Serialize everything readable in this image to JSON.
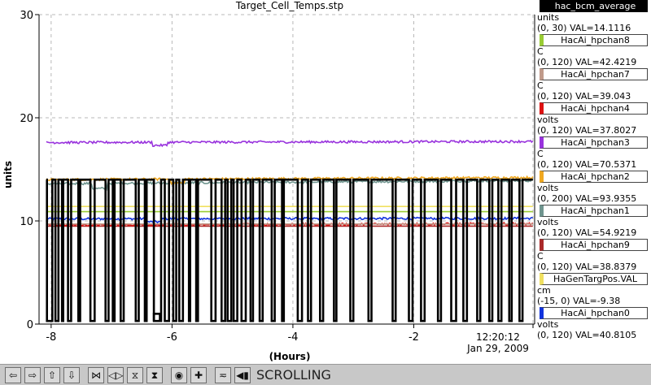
{
  "chart_data": {
    "type": "line",
    "title": "Target_Cell_Temps.stp",
    "xlabel": "(Hours)",
    "ylabel": "units",
    "xlim": [
      -8.2,
      0
    ],
    "ylim": [
      0,
      30
    ],
    "yticks": [
      "0",
      "10",
      "20",
      "30"
    ],
    "xticks": [
      "-8",
      "-6",
      "-4",
      "-2"
    ],
    "time_label": "12:20:12",
    "date_label": "Jan 29, 2009",
    "grid": true,
    "series": [
      {
        "name": "hac_bcm_average",
        "color": "#000000",
        "kind": "pulse",
        "high": 14.0,
        "low": 0.3,
        "drops": [
          [
            -8.07,
            -7.98
          ],
          [
            -7.93,
            -7.88
          ],
          [
            -7.82,
            -7.8
          ],
          [
            -7.72,
            -7.67
          ],
          [
            -7.55,
            -7.52
          ],
          [
            -7.35,
            -7.28
          ],
          [
            -7.1,
            -7.05
          ],
          [
            -6.98,
            -6.95
          ],
          [
            -6.85,
            -6.8
          ],
          [
            -6.6,
            -6.55
          ],
          [
            -6.45,
            -6.42
          ],
          [
            -6.3,
            -6.18
          ],
          [
            -6.12,
            -6.05
          ],
          [
            -5.98,
            -5.93
          ],
          [
            -5.88,
            -5.82
          ],
          [
            -5.72,
            -5.7
          ],
          [
            -5.6,
            -5.57
          ],
          [
            -5.35,
            -5.28
          ],
          [
            -5.18,
            -5.12
          ],
          [
            -5.08,
            -5.02
          ],
          [
            -4.98,
            -4.92
          ],
          [
            -4.85,
            -4.78
          ],
          [
            -4.7,
            -4.66
          ],
          [
            -4.55,
            -4.5
          ],
          [
            -4.35,
            -4.3
          ],
          [
            -4.18,
            -4.15
          ],
          [
            -3.92,
            -3.85
          ],
          [
            -3.75,
            -3.7
          ],
          [
            -3.55,
            -3.5
          ],
          [
            -3.32,
            -3.28
          ],
          [
            -3.05,
            -3.0
          ],
          [
            -2.75,
            -2.7
          ],
          [
            -2.35,
            -2.3
          ],
          [
            -2.08,
            -2.02
          ],
          [
            -1.88,
            -1.82
          ],
          [
            -1.6,
            -1.55
          ],
          [
            -1.38,
            -1.3
          ],
          [
            -1.18,
            -1.12
          ],
          [
            -0.95,
            -0.9
          ],
          [
            -0.75,
            -0.7
          ],
          [
            -0.6,
            -0.55
          ],
          [
            -0.42,
            -0.38
          ],
          [
            -0.25,
            -0.2
          ]
        ],
        "blip": [
          -6.3,
          -6.2,
          1.0
        ]
      },
      {
        "name": "HacAi_hpchan8",
        "color": "#99cc33",
        "kind": "flat",
        "value": 10.9
      },
      {
        "name": "HacAi_hpchan7",
        "color": "#c09a8a",
        "kind": "flat",
        "value": 9.7
      },
      {
        "name": "HacAi_hpchan4",
        "color": "#dd1111",
        "kind": "noisy",
        "value": 9.6,
        "slope": 0.12
      },
      {
        "name": "HacAi_hpchan3",
        "color": "#9933dd",
        "kind": "noisy",
        "value": 17.6,
        "slope": 0.1,
        "dip": [
          -6.2,
          -0.3
        ]
      },
      {
        "name": "HacAi_hpchan2",
        "color": "#f0a820",
        "kind": "noisy",
        "value": 14.0,
        "slope": 0.2,
        "dip": [
          -5.9,
          -0.4
        ]
      },
      {
        "name": "HacAi_hpchan1",
        "color": "#6f958f",
        "kind": "noisy",
        "value": 13.6,
        "slope": 0.3,
        "dip": [
          -7.2,
          -0.5
        ]
      },
      {
        "name": "HacAi_hpchan9",
        "color": "#aa2a2a",
        "kind": "flat",
        "value": 9.5
      },
      {
        "name": "HaGenTargPos.VAL",
        "color": "#f0e060",
        "kind": "flat",
        "value": 11.4
      },
      {
        "name": "HacAi_hpchan0",
        "color": "#1133dd",
        "kind": "noisy",
        "value": 10.2,
        "slope": 0.05,
        "dip": [
          -6.3,
          -0.3
        ]
      }
    ]
  },
  "legend": [
    {
      "name": "hac_bcm_average",
      "color": "#000000",
      "unit": "units",
      "range": "(0, 30) VAL=14.1116"
    },
    {
      "name": "HacAi_hpchan8",
      "color": "#99cc33",
      "unit": "C",
      "range": "(0, 120) VAL=42.4219"
    },
    {
      "name": "HacAi_hpchan7",
      "color": "#c09a8a",
      "unit": "C",
      "range": "(0, 120) VAL=39.043"
    },
    {
      "name": "HacAi_hpchan4",
      "color": "#dd1111",
      "unit": "volts",
      "range": "(0, 120) VAL=37.8027"
    },
    {
      "name": "HacAi_hpchan3",
      "color": "#9933dd",
      "unit": "C",
      "range": "(0, 120) VAL=70.5371"
    },
    {
      "name": "HacAi_hpchan2",
      "color": "#f0a820",
      "unit": "volts",
      "range": "(0, 200) VAL=93.9355"
    },
    {
      "name": "HacAi_hpchan1",
      "color": "#6f958f",
      "unit": "volts",
      "range": "(0, 120) VAL=54.9219"
    },
    {
      "name": "HacAi_hpchan9",
      "color": "#aa2a2a",
      "unit": "C",
      "range": "(0, 120) VAL=38.8379"
    },
    {
      "name": "HaGenTargPos.VAL",
      "color": "#f0e060",
      "unit": "cm",
      "range": "(-15, 0) VAL=-9.38"
    },
    {
      "name": "HacAi_hpchan0",
      "color": "#1133dd",
      "unit": "volts",
      "range": "(0, 120) VAL=40.8105"
    }
  ],
  "toolbar": {
    "buttons": [
      {
        "name": "scroll-left-button",
        "glyph": "⇦"
      },
      {
        "name": "scroll-right-button",
        "glyph": "⇨"
      },
      {
        "name": "scroll-up-button",
        "glyph": "⇧"
      },
      {
        "name": "scroll-down-button",
        "glyph": "⇩"
      },
      {
        "name": "expand-horizontal-button",
        "glyph": "⋈"
      },
      {
        "name": "compress-horizontal-button",
        "glyph": "◁▷"
      },
      {
        "name": "expand-vertical-button",
        "glyph": "⧖"
      },
      {
        "name": "compress-vertical-button",
        "glyph": "⧗"
      },
      {
        "name": "zoom-reset-button",
        "glyph": "◉"
      },
      {
        "name": "add-trace-button",
        "glyph": "✚"
      },
      {
        "name": "autoscale-button",
        "glyph": "≂"
      },
      {
        "name": "mode-toggle-button",
        "glyph": "◀▮"
      }
    ],
    "mode_label": "SCROLLING"
  }
}
